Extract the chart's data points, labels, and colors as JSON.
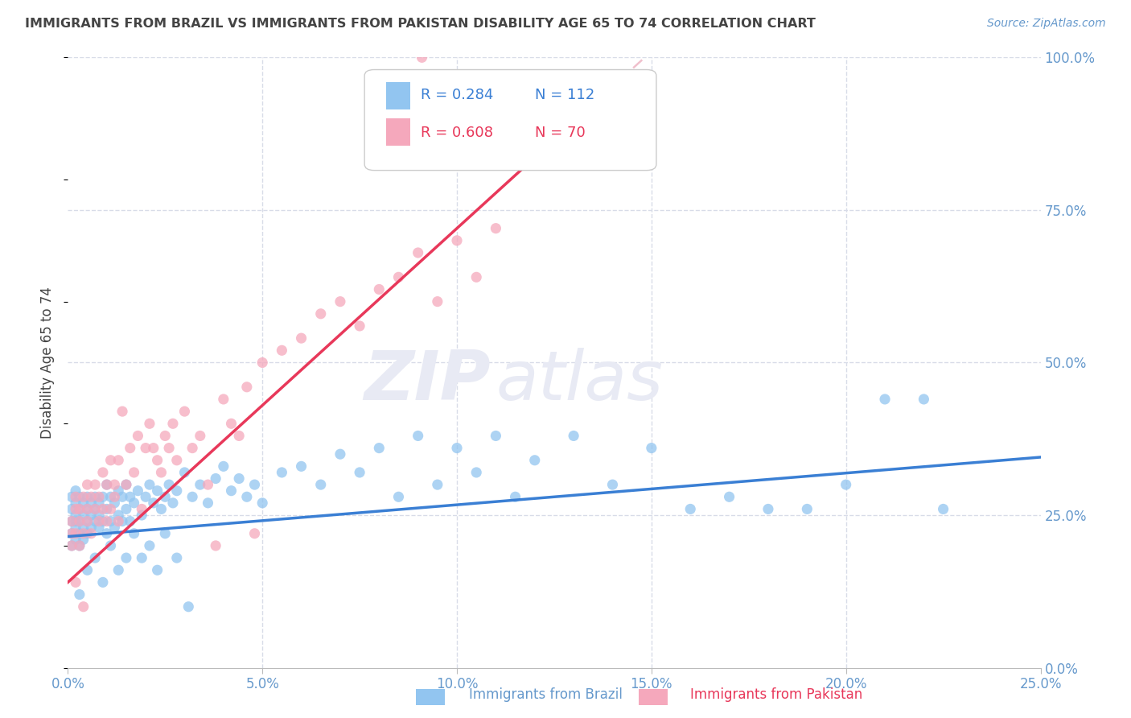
{
  "title": "IMMIGRANTS FROM BRAZIL VS IMMIGRANTS FROM PAKISTAN DISABILITY AGE 65 TO 74 CORRELATION CHART",
  "source": "Source: ZipAtlas.com",
  "ylabel": "Disability Age 65 to 74",
  "legend_label_brazil": "Immigrants from Brazil",
  "legend_label_pakistan": "Immigrants from Pakistan",
  "brazil_R": 0.284,
  "brazil_N": 112,
  "pakistan_R": 0.608,
  "pakistan_N": 70,
  "brazil_color": "#92C5F0",
  "pakistan_color": "#F5A8BC",
  "brazil_line_color": "#3A7FD4",
  "pakistan_line_color": "#E8385A",
  "dashed_line_color": "#F0C0CC",
  "watermark_color": "#E8EAF4",
  "grid_color": "#D8DCE8",
  "text_color": "#444444",
  "tick_color": "#6699CC",
  "xlim": [
    0.0,
    0.25
  ],
  "ylim": [
    0.0,
    1.0
  ],
  "xtick_vals": [
    0.0,
    0.05,
    0.1,
    0.15,
    0.2,
    0.25
  ],
  "xtick_labels": [
    "0.0%",
    "5.0%",
    "10.0%",
    "15.0%",
    "20.0%",
    "25.0%"
  ],
  "ytick_vals": [
    0.0,
    0.25,
    0.5,
    0.75,
    1.0
  ],
  "ytick_labels": [
    "0.0%",
    "25.0%",
    "50.0%",
    "75.0%",
    "100.0%"
  ],
  "watermark": "ZIPatlas",
  "background_color": "#ffffff",
  "brazil_x": [
    0.001,
    0.001,
    0.001,
    0.001,
    0.001,
    0.002,
    0.002,
    0.002,
    0.002,
    0.002,
    0.002,
    0.003,
    0.003,
    0.003,
    0.003,
    0.003,
    0.004,
    0.004,
    0.004,
    0.004,
    0.005,
    0.005,
    0.005,
    0.005,
    0.006,
    0.006,
    0.006,
    0.007,
    0.007,
    0.007,
    0.008,
    0.008,
    0.008,
    0.009,
    0.009,
    0.01,
    0.01,
    0.01,
    0.011,
    0.011,
    0.012,
    0.012,
    0.013,
    0.013,
    0.014,
    0.014,
    0.015,
    0.015,
    0.016,
    0.016,
    0.017,
    0.018,
    0.019,
    0.02,
    0.021,
    0.022,
    0.023,
    0.024,
    0.025,
    0.026,
    0.027,
    0.028,
    0.03,
    0.032,
    0.034,
    0.036,
    0.038,
    0.04,
    0.042,
    0.044,
    0.046,
    0.048,
    0.05,
    0.055,
    0.06,
    0.065,
    0.07,
    0.075,
    0.08,
    0.085,
    0.09,
    0.095,
    0.1,
    0.105,
    0.11,
    0.115,
    0.12,
    0.13,
    0.14,
    0.15,
    0.16,
    0.17,
    0.18,
    0.19,
    0.2,
    0.21,
    0.22,
    0.225,
    0.003,
    0.005,
    0.007,
    0.009,
    0.011,
    0.013,
    0.015,
    0.017,
    0.019,
    0.021,
    0.023,
    0.025,
    0.028,
    0.031
  ],
  "brazil_y": [
    0.26,
    0.22,
    0.24,
    0.2,
    0.28,
    0.25,
    0.23,
    0.27,
    0.21,
    0.29,
    0.24,
    0.26,
    0.22,
    0.28,
    0.24,
    0.2,
    0.27,
    0.23,
    0.25,
    0.21,
    0.28,
    0.24,
    0.26,
    0.22,
    0.25,
    0.27,
    0.23,
    0.26,
    0.28,
    0.24,
    0.27,
    0.23,
    0.25,
    0.28,
    0.24,
    0.3,
    0.26,
    0.22,
    0.28,
    0.24,
    0.27,
    0.23,
    0.29,
    0.25,
    0.28,
    0.24,
    0.3,
    0.26,
    0.28,
    0.24,
    0.27,
    0.29,
    0.25,
    0.28,
    0.3,
    0.27,
    0.29,
    0.26,
    0.28,
    0.3,
    0.27,
    0.29,
    0.32,
    0.28,
    0.3,
    0.27,
    0.31,
    0.33,
    0.29,
    0.31,
    0.28,
    0.3,
    0.27,
    0.32,
    0.33,
    0.3,
    0.35,
    0.32,
    0.36,
    0.28,
    0.38,
    0.3,
    0.36,
    0.32,
    0.38,
    0.28,
    0.34,
    0.38,
    0.3,
    0.36,
    0.26,
    0.28,
    0.26,
    0.26,
    0.3,
    0.44,
    0.44,
    0.26,
    0.12,
    0.16,
    0.18,
    0.14,
    0.2,
    0.16,
    0.18,
    0.22,
    0.18,
    0.2,
    0.16,
    0.22,
    0.18,
    0.1
  ],
  "pakistan_x": [
    0.001,
    0.001,
    0.001,
    0.002,
    0.002,
    0.002,
    0.003,
    0.003,
    0.003,
    0.004,
    0.004,
    0.005,
    0.005,
    0.005,
    0.006,
    0.006,
    0.007,
    0.007,
    0.008,
    0.008,
    0.009,
    0.009,
    0.01,
    0.01,
    0.011,
    0.011,
    0.012,
    0.012,
    0.013,
    0.013,
    0.014,
    0.015,
    0.016,
    0.017,
    0.018,
    0.019,
    0.02,
    0.021,
    0.022,
    0.023,
    0.024,
    0.025,
    0.026,
    0.027,
    0.028,
    0.03,
    0.032,
    0.034,
    0.036,
    0.038,
    0.04,
    0.042,
    0.044,
    0.046,
    0.048,
    0.05,
    0.055,
    0.06,
    0.065,
    0.07,
    0.075,
    0.08,
    0.085,
    0.09,
    0.095,
    0.1,
    0.105,
    0.11,
    0.002,
    0.004
  ],
  "pakistan_y": [
    0.22,
    0.2,
    0.24,
    0.26,
    0.22,
    0.28,
    0.24,
    0.2,
    0.26,
    0.28,
    0.22,
    0.3,
    0.24,
    0.26,
    0.28,
    0.22,
    0.3,
    0.26,
    0.28,
    0.24,
    0.32,
    0.26,
    0.3,
    0.24,
    0.34,
    0.26,
    0.3,
    0.28,
    0.34,
    0.24,
    0.42,
    0.3,
    0.36,
    0.32,
    0.38,
    0.26,
    0.36,
    0.4,
    0.36,
    0.34,
    0.32,
    0.38,
    0.36,
    0.4,
    0.34,
    0.42,
    0.36,
    0.38,
    0.3,
    0.2,
    0.44,
    0.4,
    0.38,
    0.46,
    0.22,
    0.5,
    0.52,
    0.54,
    0.58,
    0.6,
    0.56,
    0.62,
    0.64,
    0.68,
    0.6,
    0.7,
    0.64,
    0.72,
    0.14,
    0.1
  ],
  "pakistan_outlier_x": [
    0.091
  ],
  "pakistan_outlier_y": [
    1.0
  ],
  "brazil_intercept": 0.215,
  "brazil_slope": 0.52,
  "pakistan_intercept": 0.14,
  "pakistan_slope": 5.8
}
